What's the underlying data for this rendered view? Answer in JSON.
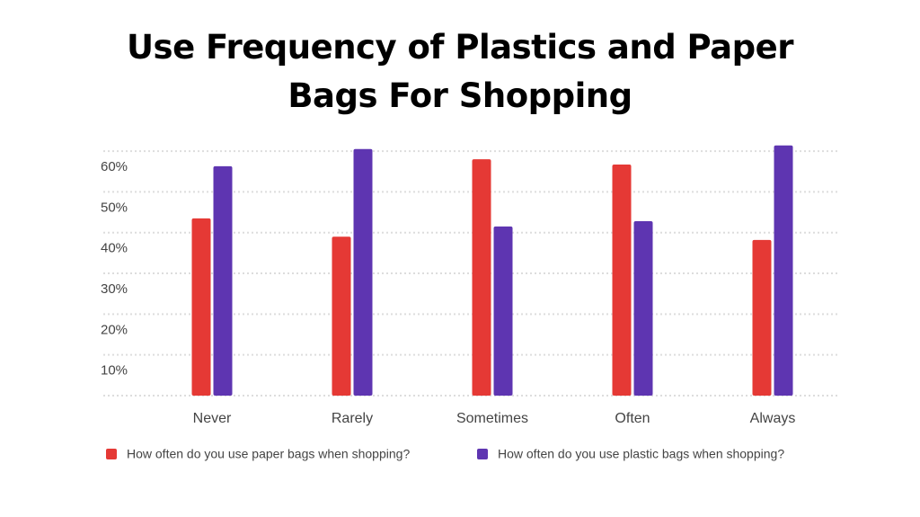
{
  "chart_data": {
    "type": "bar",
    "title": "Use Frequency of Plastics and Paper Bags For Shopping",
    "categories": [
      "Never",
      "Rarely",
      "Sometimes",
      "Often",
      "Always"
    ],
    "series": [
      {
        "name": "How often do you use paper bags when shopping?",
        "color": "#e53935",
        "values": [
          43.5,
          39,
          58,
          56.7,
          38.2
        ]
      },
      {
        "name": "How often do you use plastic bags when shopping?",
        "color": "#5e35b1",
        "values": [
          56.3,
          60.5,
          41.5,
          42.8,
          61.4
        ]
      }
    ],
    "ylim": [
      0,
      62
    ],
    "yticks": [
      {
        "value": 10,
        "label": "10%"
      },
      {
        "value": 20,
        "label": "20%"
      },
      {
        "value": 30,
        "label": "30%"
      },
      {
        "value": 40,
        "label": "40%"
      },
      {
        "value": 50,
        "label": "50%"
      },
      {
        "value": 60,
        "label": "60%"
      }
    ],
    "grid": true,
    "legend": "bottom"
  }
}
